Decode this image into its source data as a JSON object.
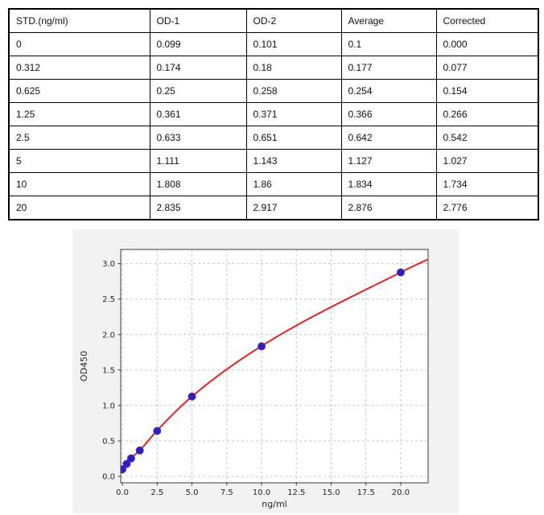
{
  "table": {
    "headers": [
      "STD.(ng/ml)",
      "OD-1",
      "OD-2",
      "Average",
      "Corrected"
    ],
    "rows": [
      [
        "0",
        "0.099",
        "0.101",
        "0.1",
        "0.000"
      ],
      [
        "0.312",
        "0.174",
        "0.18",
        "0.177",
        "0.077"
      ],
      [
        "0.625",
        "0.25",
        "0.258",
        "0.254",
        "0.154"
      ],
      [
        "1.25",
        "0.361",
        "0.371",
        "0.366",
        "0.266"
      ],
      [
        "2.5",
        "0.633",
        "0.651",
        "0.642",
        "0.542"
      ],
      [
        "5",
        "1.111",
        "1.143",
        "1.127",
        "1.027"
      ],
      [
        "10",
        "1.808",
        "1.86",
        "1.834",
        "1.734"
      ],
      [
        "20",
        "2.835",
        "2.917",
        "2.876",
        "2.776"
      ]
    ]
  },
  "chart_data": {
    "type": "scatter",
    "title": "",
    "xlabel": "ng/ml",
    "ylabel": "OD450",
    "x": [
      0,
      0.312,
      0.625,
      1.25,
      2.5,
      5,
      10,
      20
    ],
    "y": [
      0.1,
      0.177,
      0.254,
      0.366,
      0.642,
      1.127,
      1.834,
      2.876
    ],
    "series": [
      {
        "name": "standard-points",
        "kind": "scatter",
        "x": [
          0,
          0.312,
          0.625,
          1.25,
          2.5,
          5,
          10,
          20
        ],
        "y": [
          0.1,
          0.177,
          0.254,
          0.366,
          0.642,
          1.127,
          1.834,
          2.876
        ]
      },
      {
        "name": "fitted-curve",
        "kind": "line",
        "anchors": [
          [
            0,
            0.085
          ],
          [
            0.312,
            0.172
          ],
          [
            0.625,
            0.252
          ],
          [
            1.25,
            0.368
          ],
          [
            2.5,
            0.648
          ],
          [
            5,
            1.127
          ],
          [
            10,
            1.838
          ],
          [
            20,
            2.878
          ],
          [
            22.0,
            3.065
          ]
        ]
      }
    ],
    "x_ticks": [
      0,
      2.5,
      5,
      7.5,
      10,
      12.5,
      15,
      17.5,
      20
    ],
    "y_ticks": [
      0,
      0.5,
      1,
      1.5,
      2,
      2.5,
      3
    ],
    "tick_decimals": 1,
    "xlim": [
      -0.12,
      21.97
    ],
    "ylim": [
      -0.09,
      3.2
    ],
    "grid": true,
    "grid_style": "dashed",
    "legend": null,
    "colors": {
      "curve": "#e02424",
      "point_fill": "#2a1fc0",
      "point_edge": "#5a2ea6",
      "figure_bg": "#f2f2f2",
      "plot_bg": "#ffffff",
      "grid": "#c6c6c6",
      "spine": "#3a3a3a",
      "tick_label": "#262626"
    }
  }
}
